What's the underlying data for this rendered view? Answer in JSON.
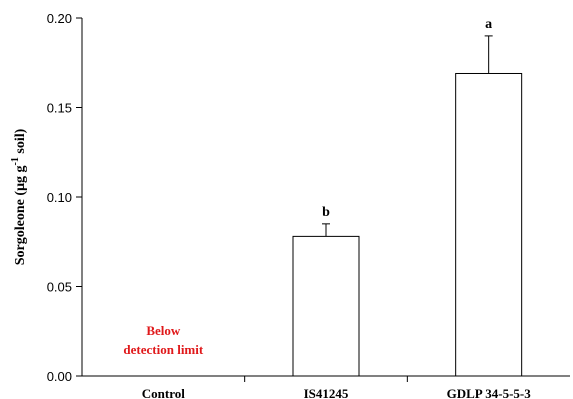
{
  "chart_data": {
    "type": "bar",
    "title": "",
    "xlabel": "",
    "ylabel": "Sorgoleone (µg g",
    "ylabel_superscript": "-1",
    "ylabel_suffix": " soil)",
    "ylim": [
      0,
      0.2
    ],
    "yticks": [
      "0.00",
      "0.05",
      "0.10",
      "0.15",
      "0.20"
    ],
    "categories": [
      "Control",
      "IS41245",
      "GDLP 34-5-5-3"
    ],
    "values": [
      null,
      0.078,
      0.169
    ],
    "errors": [
      null,
      0.007,
      0.021
    ],
    "significance_letters": [
      "",
      "b",
      "a"
    ],
    "annotation": {
      "line1": "Below",
      "line2": "detection limit",
      "color": "#e0191b"
    },
    "grid": false,
    "legend": "none",
    "bar_fill": "#ffffff",
    "bar_edge": "#000000"
  }
}
